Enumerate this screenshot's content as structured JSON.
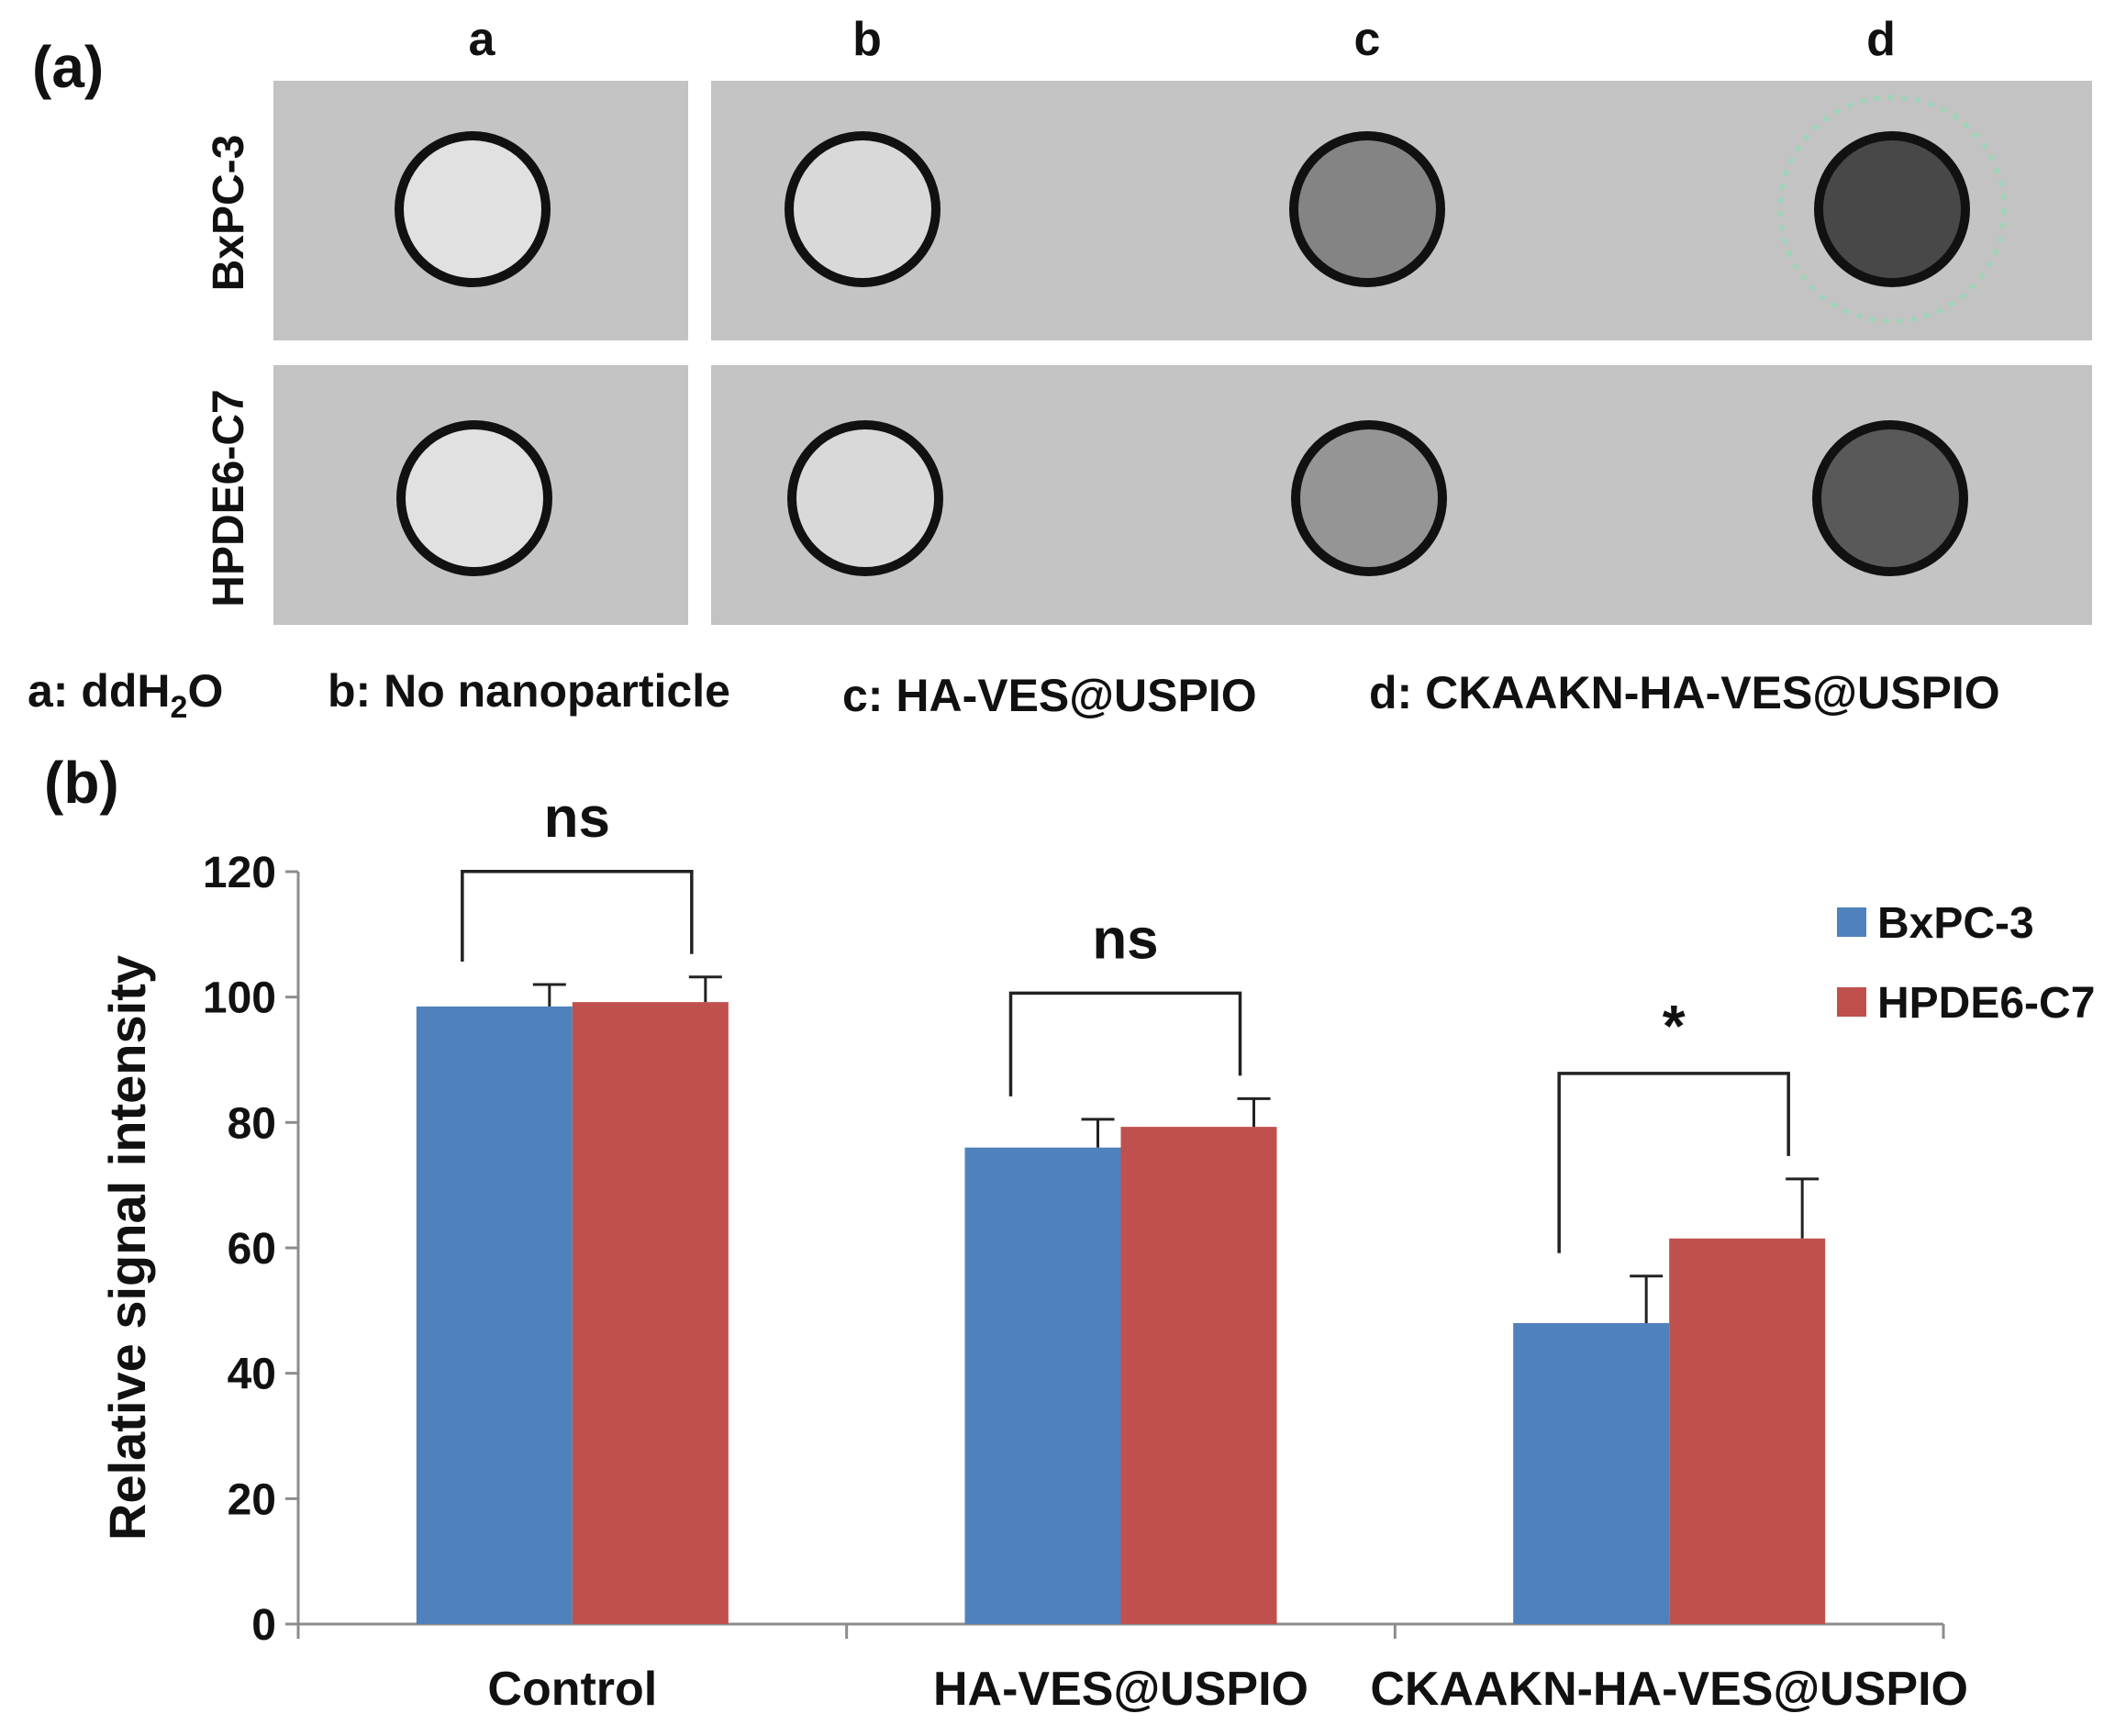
{
  "panel_a": {
    "label": "(a)",
    "columns": [
      "a",
      "b",
      "c",
      "d"
    ],
    "rows": [
      "BxPC-3",
      "HPDE6-C7"
    ],
    "legend": {
      "a_prefix": "a: ddH",
      "a_sub": "2",
      "a_suffix": "O",
      "b": "b: No nanoparticle",
      "c": "c: HA-VES@USPIO",
      "d": "d: CKAAKN-HA-VES@USPIO"
    },
    "well_shading": {
      "BxPC-3": {
        "a": 0.0,
        "b": 0.05,
        "c": 0.55,
        "d": 0.9
      },
      "HPDE6-C7": {
        "a": 0.0,
        "b": 0.05,
        "c": 0.45,
        "d": 0.8
      }
    },
    "highlight": {
      "row": "BxPC-3",
      "column": "d",
      "color": "#9ed4b8"
    }
  },
  "panel_b": {
    "label": "(b)"
  },
  "chart_data": {
    "type": "bar",
    "title": "",
    "xlabel": "",
    "ylabel": "Relative signal intensity",
    "ylim": [
      0,
      120
    ],
    "yticks": [
      0,
      20,
      40,
      60,
      80,
      100,
      120
    ],
    "ytick_labels": [
      "0",
      "20",
      "40",
      "60",
      "80",
      "100",
      "120"
    ],
    "categories": [
      "Control",
      "HA-VES@USPIO",
      "CKAAKN-HA-VES@USPIO"
    ],
    "series": [
      {
        "name": "BxPC-3",
        "color": "#4f81bd",
        "values": [
          98.5,
          76,
          48
        ],
        "errors": [
          3.5,
          4.5,
          7.5
        ]
      },
      {
        "name": "HPDE6-C7",
        "color": "#c0504d",
        "values": [
          99.2,
          79.3,
          61.5
        ],
        "errors": [
          4,
          4.5,
          9.5
        ]
      }
    ],
    "significance": [
      "ns",
      "ns",
      "*"
    ],
    "legend_position": "top-right",
    "grid": false
  }
}
